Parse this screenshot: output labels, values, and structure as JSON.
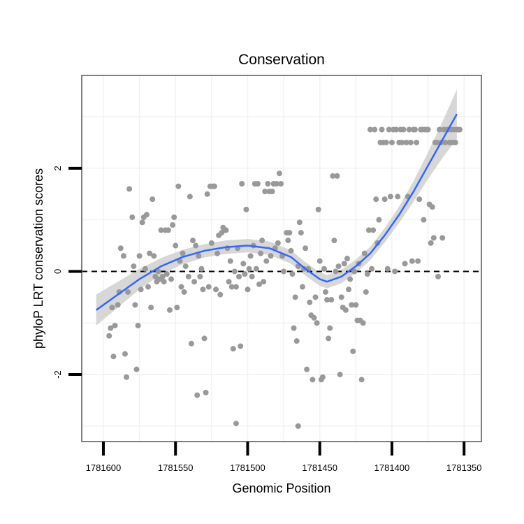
{
  "chart_data": {
    "type": "scatter",
    "title": "Conservation",
    "xlabel": "Genomic Position",
    "ylabel": "phyloP LRT conservation scores",
    "x_reversed": true,
    "xlim": [
      1781615,
      1781338
    ],
    "ylim": [
      -3.3,
      3.8
    ],
    "x_ticks": [
      1781600,
      1781550,
      1781500,
      1781450,
      1781400,
      1781350
    ],
    "y_ticks": [
      -2,
      0,
      2
    ],
    "grid": true,
    "reference_line": {
      "y": 0,
      "style": "dashed"
    },
    "colors": {
      "points": "#999999",
      "trend": "#3366ff",
      "band": "#d3d3d3",
      "frame": "#7f7f7f",
      "grid": "#f2f2f2"
    },
    "points": [
      {
        "x": 1781596,
        "y": -1.25
      },
      {
        "x": 1781595,
        "y": -1.1
      },
      {
        "x": 1781594,
        "y": -0.7
      },
      {
        "x": 1781593,
        "y": -1.65
      },
      {
        "x": 1781592,
        "y": -1.05
      },
      {
        "x": 1781590,
        "y": -0.65
      },
      {
        "x": 1781589,
        "y": -0.4
      },
      {
        "x": 1781588,
        "y": 0.45
      },
      {
        "x": 1781586,
        "y": 0.3
      },
      {
        "x": 1781585,
        "y": -1.6
      },
      {
        "x": 1781584,
        "y": -2.05
      },
      {
        "x": 1781583,
        "y": -0.4
      },
      {
        "x": 1781582,
        "y": 1.6
      },
      {
        "x": 1781580,
        "y": 1.05
      },
      {
        "x": 1781579,
        "y": 0.1
      },
      {
        "x": 1781578,
        "y": -0.65
      },
      {
        "x": 1781577,
        "y": -1.9
      },
      {
        "x": 1781576,
        "y": -1.05
      },
      {
        "x": 1781575,
        "y": 0.3
      },
      {
        "x": 1781574,
        "y": -0.35
      },
      {
        "x": 1781573,
        "y": 0.95
      },
      {
        "x": 1781572,
        "y": 1.05
      },
      {
        "x": 1781571,
        "y": 0.05
      },
      {
        "x": 1781570,
        "y": 1.1
      },
      {
        "x": 1781569,
        "y": -0.3
      },
      {
        "x": 1781568,
        "y": 0.35
      },
      {
        "x": 1781567,
        "y": -0.7
      },
      {
        "x": 1781566,
        "y": 1.4
      },
      {
        "x": 1781565,
        "y": 0.3
      },
      {
        "x": 1781564,
        "y": -0.1
      },
      {
        "x": 1781563,
        "y": -0.2
      },
      {
        "x": 1781562,
        "y": 0.0
      },
      {
        "x": 1781561,
        "y": -0.15
      },
      {
        "x": 1781560,
        "y": 0.8
      },
      {
        "x": 1781559,
        "y": -0.1
      },
      {
        "x": 1781558,
        "y": -0.2
      },
      {
        "x": 1781557,
        "y": 0.8
      },
      {
        "x": 1781556,
        "y": -0.05
      },
      {
        "x": 1781555,
        "y": 0.8
      },
      {
        "x": 1781554,
        "y": -0.75
      },
      {
        "x": 1781553,
        "y": -0.15
      },
      {
        "x": 1781552,
        "y": 0.9
      },
      {
        "x": 1781551,
        "y": 1.05
      },
      {
        "x": 1781550,
        "y": 0.5
      },
      {
        "x": 1781549,
        "y": -0.7
      },
      {
        "x": 1781548,
        "y": 1.65
      },
      {
        "x": 1781547,
        "y": 0.2
      },
      {
        "x": 1781546,
        "y": -0.3
      },
      {
        "x": 1781545,
        "y": 0.35
      },
      {
        "x": 1781544,
        "y": -0.4
      },
      {
        "x": 1781543,
        "y": 0.1
      },
      {
        "x": 1781541,
        "y": -0.1
      },
      {
        "x": 1781540,
        "y": 1.45
      },
      {
        "x": 1781539,
        "y": -1.4
      },
      {
        "x": 1781538,
        "y": 0.6
      },
      {
        "x": 1781537,
        "y": -0.2
      },
      {
        "x": 1781536,
        "y": 0.5
      },
      {
        "x": 1781535,
        "y": -2.4
      },
      {
        "x": 1781534,
        "y": 0.3
      },
      {
        "x": 1781533,
        "y": -0.1
      },
      {
        "x": 1781532,
        "y": 0.05
      },
      {
        "x": 1781531,
        "y": -0.35
      },
      {
        "x": 1781530,
        "y": -1.3
      },
      {
        "x": 1781529,
        "y": -2.35
      },
      {
        "x": 1781528,
        "y": 1.5
      },
      {
        "x": 1781527,
        "y": -0.3
      },
      {
        "x": 1781526,
        "y": 1.65
      },
      {
        "x": 1781525,
        "y": 0.55
      },
      {
        "x": 1781524,
        "y": 1.65
      },
      {
        "x": 1781523,
        "y": 1.65
      },
      {
        "x": 1781522,
        "y": -0.35
      },
      {
        "x": 1781521,
        "y": 0.35
      },
      {
        "x": 1781520,
        "y": 0.7
      },
      {
        "x": 1781519,
        "y": -0.45
      },
      {
        "x": 1781518,
        "y": 0.75
      },
      {
        "x": 1781517,
        "y": 0.85
      },
      {
        "x": 1781516,
        "y": 0.8
      },
      {
        "x": 1781515,
        "y": 0.8
      },
      {
        "x": 1781514,
        "y": 0.45
      },
      {
        "x": 1781513,
        "y": -0.2
      },
      {
        "x": 1781512,
        "y": 0.2
      },
      {
        "x": 1781511,
        "y": -0.3
      },
      {
        "x": 1781510,
        "y": -1.5
      },
      {
        "x": 1781509,
        "y": 0.0
      },
      {
        "x": 1781508,
        "y": -0.3
      },
      {
        "x": 1781507,
        "y": 0.45
      },
      {
        "x": 1781506,
        "y": -0.1
      },
      {
        "x": 1781505,
        "y": -1.45
      },
      {
        "x": 1781504,
        "y": 1.7
      },
      {
        "x": 1781503,
        "y": 0.15
      },
      {
        "x": 1781502,
        "y": -0.05
      },
      {
        "x": 1781501,
        "y": 1.2
      },
      {
        "x": 1781500,
        "y": -0.35
      },
      {
        "x": 1781499,
        "y": 0.05
      },
      {
        "x": 1781498,
        "y": 0.3
      },
      {
        "x": 1781497,
        "y": -0.1
      },
      {
        "x": 1781496,
        "y": 0.5
      },
      {
        "x": 1781495,
        "y": 1.7
      },
      {
        "x": 1781494,
        "y": 0.05
      },
      {
        "x": 1781493,
        "y": 1.7
      },
      {
        "x": 1781492,
        "y": -0.25
      },
      {
        "x": 1781491,
        "y": 0.35
      },
      {
        "x": 1781490,
        "y": 0.6
      },
      {
        "x": 1781489,
        "y": -0.2
      },
      {
        "x": 1781488,
        "y": 1.55
      },
      {
        "x": 1781487,
        "y": 0.2
      },
      {
        "x": 1781486,
        "y": 1.7
      },
      {
        "x": 1781485,
        "y": 1.55
      },
      {
        "x": 1781484,
        "y": 0.3
      },
      {
        "x": 1781483,
        "y": 1.55
      },
      {
        "x": 1781482,
        "y": 1.7
      },
      {
        "x": 1781481,
        "y": 0.45
      },
      {
        "x": 1781480,
        "y": 1.7
      },
      {
        "x": 1781479,
        "y": 0.55
      },
      {
        "x": 1781478,
        "y": 1.9
      },
      {
        "x": 1781477,
        "y": 1.7
      },
      {
        "x": 1781476,
        "y": 0.3
      },
      {
        "x": 1781475,
        "y": 0.0
      },
      {
        "x": 1781473,
        "y": 0.75
      },
      {
        "x": 1781472,
        "y": 0.6
      },
      {
        "x": 1781471,
        "y": 0.75
      },
      {
        "x": 1781470,
        "y": 0.4
      },
      {
        "x": 1781469,
        "y": -0.05
      },
      {
        "x": 1781468,
        "y": -1.1
      },
      {
        "x": 1781467,
        "y": -0.5
      },
      {
        "x": 1781466,
        "y": -1.35
      },
      {
        "x": 1781465,
        "y": 0.1
      },
      {
        "x": 1781464,
        "y": 0.95
      },
      {
        "x": 1781463,
        "y": 0.75
      },
      {
        "x": 1781462,
        "y": -0.3
      },
      {
        "x": 1781461,
        "y": 0.05
      },
      {
        "x": 1781460,
        "y": 0.45
      },
      {
        "x": 1781459,
        "y": -1.9
      },
      {
        "x": 1781458,
        "y": 0.05
      },
      {
        "x": 1781457,
        "y": -0.6
      },
      {
        "x": 1781456,
        "y": -0.85
      },
      {
        "x": 1781455,
        "y": -2.1
      },
      {
        "x": 1781454,
        "y": -0.9
      },
      {
        "x": 1781453,
        "y": -0.5
      },
      {
        "x": 1781452,
        "y": -1.0
      },
      {
        "x": 1781451,
        "y": 1.2
      },
      {
        "x": 1781450,
        "y": 0.2
      },
      {
        "x": 1781449,
        "y": -2.1
      },
      {
        "x": 1781448,
        "y": -2.05
      },
      {
        "x": 1781447,
        "y": 0.05
      },
      {
        "x": 1781446,
        "y": -0.4
      },
      {
        "x": 1781445,
        "y": -0.55
      },
      {
        "x": 1781444,
        "y": -1.3
      },
      {
        "x": 1781443,
        "y": -1.1
      },
      {
        "x": 1781442,
        "y": -0.55
      },
      {
        "x": 1781441,
        "y": 1.85
      },
      {
        "x": 1781440,
        "y": 0.6
      },
      {
        "x": 1781439,
        "y": 0.0
      },
      {
        "x": 1781438,
        "y": 1.85
      },
      {
        "x": 1781437,
        "y": 0.1
      },
      {
        "x": 1781436,
        "y": -2.0
      },
      {
        "x": 1781435,
        "y": -0.5
      },
      {
        "x": 1781434,
        "y": -0.7
      },
      {
        "x": 1781433,
        "y": 0.15
      },
      {
        "x": 1781432,
        "y": -0.75
      },
      {
        "x": 1781431,
        "y": 0.25
      },
      {
        "x": 1781430,
        "y": -0.35
      },
      {
        "x": 1781429,
        "y": -0.15
      },
      {
        "x": 1781428,
        "y": -0.65
      },
      {
        "x": 1781427,
        "y": -1.55
      },
      {
        "x": 1781426,
        "y": 0.0
      },
      {
        "x": 1781425,
        "y": -0.65
      },
      {
        "x": 1781424,
        "y": -0.95
      },
      {
        "x": 1781423,
        "y": 0.15
      },
      {
        "x": 1781422,
        "y": -0.95
      },
      {
        "x": 1781421,
        "y": -2.1
      },
      {
        "x": 1781420,
        "y": -1.0
      },
      {
        "x": 1781419,
        "y": 0.35
      },
      {
        "x": 1781418,
        "y": -0.4
      },
      {
        "x": 1781417,
        "y": -0.05
      },
      {
        "x": 1781416,
        "y": 0.8
      },
      {
        "x": 1781415,
        "y": 2.75
      },
      {
        "x": 1781414,
        "y": 0.05
      },
      {
        "x": 1781413,
        "y": 0.8
      },
      {
        "x": 1781412,
        "y": 2.75
      },
      {
        "x": 1781411,
        "y": 1.4
      },
      {
        "x": 1781410,
        "y": 0.55
      },
      {
        "x": 1781409,
        "y": 1.0
      },
      {
        "x": 1781408,
        "y": 2.5
      },
      {
        "x": 1781407,
        "y": 2.75
      },
      {
        "x": 1781406,
        "y": 2.5
      },
      {
        "x": 1781405,
        "y": 1.4
      },
      {
        "x": 1781404,
        "y": 2.5
      },
      {
        "x": 1781403,
        "y": 0.05
      },
      {
        "x": 1781402,
        "y": 2.75
      },
      {
        "x": 1781401,
        "y": 1.45
      },
      {
        "x": 1781400,
        "y": 2.5
      },
      {
        "x": 1781399,
        "y": 2.75
      },
      {
        "x": 1781398,
        "y": 0.0
      },
      {
        "x": 1781397,
        "y": 2.75
      },
      {
        "x": 1781396,
        "y": 1.45
      },
      {
        "x": 1781395,
        "y": 2.5
      },
      {
        "x": 1781394,
        "y": 2.75
      },
      {
        "x": 1781393,
        "y": 2.5
      },
      {
        "x": 1781392,
        "y": 2.75
      },
      {
        "x": 1781391,
        "y": 0.15
      },
      {
        "x": 1781390,
        "y": 2.5
      },
      {
        "x": 1781389,
        "y": 1.45
      },
      {
        "x": 1781388,
        "y": 2.75
      },
      {
        "x": 1781387,
        "y": 2.5
      },
      {
        "x": 1781386,
        "y": 0.2
      },
      {
        "x": 1781385,
        "y": 2.75
      },
      {
        "x": 1781384,
        "y": 2.75
      },
      {
        "x": 1781383,
        "y": 2.5
      },
      {
        "x": 1781382,
        "y": 0.2
      },
      {
        "x": 1781381,
        "y": 1.4
      },
      {
        "x": 1781380,
        "y": 2.75
      },
      {
        "x": 1781379,
        "y": 2.75
      },
      {
        "x": 1781378,
        "y": 1.0
      },
      {
        "x": 1781377,
        "y": 2.75
      },
      {
        "x": 1781376,
        "y": 2.75
      },
      {
        "x": 1781375,
        "y": 2.75
      },
      {
        "x": 1781374,
        "y": 1.3
      },
      {
        "x": 1781373,
        "y": 0.55
      },
      {
        "x": 1781372,
        "y": 1.25
      },
      {
        "x": 1781371,
        "y": 0.65
      },
      {
        "x": 1781370,
        "y": 2.5
      },
      {
        "x": 1781369,
        "y": 2.5
      },
      {
        "x": 1781368,
        "y": -0.1
      },
      {
        "x": 1781367,
        "y": 2.75
      },
      {
        "x": 1781366,
        "y": 2.5
      },
      {
        "x": 1781365,
        "y": 0.65
      },
      {
        "x": 1781364,
        "y": 2.75
      },
      {
        "x": 1781363,
        "y": 2.5
      },
      {
        "x": 1781362,
        "y": 2.75
      },
      {
        "x": 1781361,
        "y": 2.75
      },
      {
        "x": 1781360,
        "y": 2.5
      },
      {
        "x": 1781359,
        "y": 2.75
      },
      {
        "x": 1781358,
        "y": 2.5
      },
      {
        "x": 1781357,
        "y": 2.75
      },
      {
        "x": 1781356,
        "y": 2.5
      },
      {
        "x": 1781355,
        "y": 2.75
      },
      {
        "x": 1781354,
        "y": 2.75
      },
      {
        "x": 1781353,
        "y": 2.75
      },
      {
        "x": 1781508,
        "y": -2.95
      },
      {
        "x": 1781465,
        "y": -3.0
      }
    ],
    "trend": [
      {
        "x": 1781605,
        "y": -0.75
      },
      {
        "x": 1781590,
        "y": -0.45
      },
      {
        "x": 1781575,
        "y": -0.15
      },
      {
        "x": 1781560,
        "y": 0.1
      },
      {
        "x": 1781545,
        "y": 0.28
      },
      {
        "x": 1781530,
        "y": 0.4
      },
      {
        "x": 1781515,
        "y": 0.47
      },
      {
        "x": 1781500,
        "y": 0.5
      },
      {
        "x": 1781485,
        "y": 0.45
      },
      {
        "x": 1781470,
        "y": 0.28
      },
      {
        "x": 1781460,
        "y": 0.05
      },
      {
        "x": 1781450,
        "y": -0.15
      },
      {
        "x": 1781445,
        "y": -0.2
      },
      {
        "x": 1781435,
        "y": -0.1
      },
      {
        "x": 1781425,
        "y": 0.1
      },
      {
        "x": 1781415,
        "y": 0.35
      },
      {
        "x": 1781405,
        "y": 0.7
      },
      {
        "x": 1781395,
        "y": 1.1
      },
      {
        "x": 1781385,
        "y": 1.55
      },
      {
        "x": 1781375,
        "y": 2.05
      },
      {
        "x": 1781365,
        "y": 2.55
      },
      {
        "x": 1781355,
        "y": 3.05
      }
    ],
    "band_halfwidth": [
      0.3,
      0.25,
      0.2,
      0.16,
      0.14,
      0.13,
      0.13,
      0.13,
      0.13,
      0.13,
      0.13,
      0.13,
      0.13,
      0.13,
      0.13,
      0.13,
      0.14,
      0.16,
      0.2,
      0.26,
      0.35,
      0.48
    ]
  }
}
